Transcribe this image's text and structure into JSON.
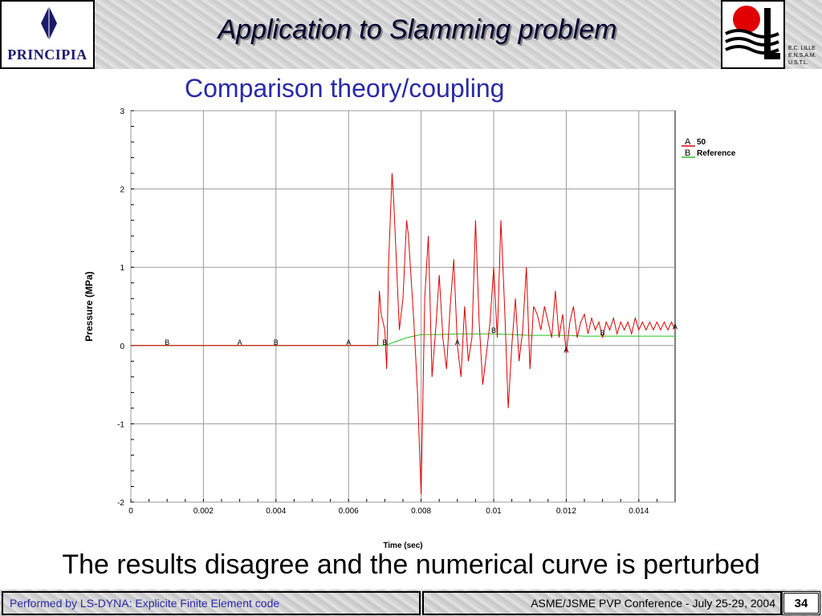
{
  "header": {
    "logo_left_text": "PRINCIPIA",
    "title": "Application to Slamming problem",
    "school_lines": [
      "E.C. LILLE",
      "E.N.S.A.M.",
      "U.S.T.L."
    ]
  },
  "subtitle": "Comparison theory/coupling",
  "caption": "The results disagree and the numerical curve is perturbed",
  "footer": {
    "left": "Performed by LS-DYNA: Explicite Finite Element code",
    "right": "ASME/JSME PVP Conference - July 25-29, 2004",
    "page": "34"
  },
  "colors": {
    "series_a": "#e00000",
    "series_b": "#22c422",
    "subtitle": "#2a2aa8"
  },
  "chart_data": {
    "type": "line",
    "xlabel": "Time (sec)",
    "ylabel": "Pressure (MPa)",
    "xlim": [
      0,
      0.015
    ],
    "ylim": [
      -2,
      3
    ],
    "x_ticks": [
      "0",
      "0.002",
      "0.004",
      "0.006",
      "0.008",
      "0.01",
      "0.012",
      "0.014"
    ],
    "y_ticks": [
      "-2",
      "-1",
      "0",
      "1",
      "2",
      "3"
    ],
    "grid": true,
    "legend_position": "top-right",
    "series": [
      {
        "name": "50",
        "marker": "A",
        "color": "#e00000",
        "markers_x": [
          0.003,
          0.006,
          0.009,
          0.012,
          0.015
        ],
        "points": [
          [
            0,
            0
          ],
          [
            0.0068,
            0
          ],
          [
            0.00685,
            0.7
          ],
          [
            0.0069,
            0.4
          ],
          [
            0.007,
            0.2
          ],
          [
            0.00705,
            -0.3
          ],
          [
            0.0071,
            1.0
          ],
          [
            0.0072,
            2.2
          ],
          [
            0.00725,
            1.8
          ],
          [
            0.0074,
            0.2
          ],
          [
            0.0075,
            0.6
          ],
          [
            0.0076,
            1.6
          ],
          [
            0.00765,
            1.4
          ],
          [
            0.0078,
            0.3
          ],
          [
            0.0079,
            -0.6
          ],
          [
            0.008,
            -1.9
          ],
          [
            0.0081,
            0.6
          ],
          [
            0.0082,
            1.4
          ],
          [
            0.0083,
            -0.4
          ],
          [
            0.0084,
            0.2
          ],
          [
            0.0085,
            0.9
          ],
          [
            0.0086,
            0.1
          ],
          [
            0.0087,
            -0.3
          ],
          [
            0.0088,
            0.5
          ],
          [
            0.0089,
            1.1
          ],
          [
            0.009,
            0.0
          ],
          [
            0.0091,
            -0.4
          ],
          [
            0.0092,
            0.5
          ],
          [
            0.0093,
            -0.2
          ],
          [
            0.0094,
            0.1
          ],
          [
            0.0095,
            1.6
          ],
          [
            0.0096,
            0.3
          ],
          [
            0.0097,
            -0.5
          ],
          [
            0.0098,
            -0.1
          ],
          [
            0.0099,
            0.3
          ],
          [
            0.01,
            1.0
          ],
          [
            0.0101,
            0.1
          ],
          [
            0.0102,
            1.6
          ],
          [
            0.0103,
            0.5
          ],
          [
            0.0104,
            -0.8
          ],
          [
            0.0105,
            0.0
          ],
          [
            0.0106,
            0.6
          ],
          [
            0.0107,
            -0.2
          ],
          [
            0.0108,
            0.2
          ],
          [
            0.0109,
            1.0
          ],
          [
            0.011,
            -0.3
          ],
          [
            0.0111,
            0.5
          ],
          [
            0.0112,
            0.4
          ],
          [
            0.0113,
            0.2
          ],
          [
            0.0114,
            0.5
          ],
          [
            0.0115,
            0.3
          ],
          [
            0.0116,
            0.1
          ],
          [
            0.0117,
            0.7
          ],
          [
            0.0118,
            0.1
          ],
          [
            0.0119,
            0.4
          ],
          [
            0.012,
            -0.1
          ],
          [
            0.0121,
            0.3
          ],
          [
            0.0122,
            0.5
          ],
          [
            0.0123,
            0.1
          ],
          [
            0.0124,
            0.3
          ],
          [
            0.0125,
            0.4
          ],
          [
            0.0126,
            0.15
          ],
          [
            0.0127,
            0.35
          ],
          [
            0.0128,
            0.2
          ],
          [
            0.0129,
            0.3
          ],
          [
            0.013,
            0.1
          ],
          [
            0.0131,
            0.3
          ],
          [
            0.0132,
            0.2
          ],
          [
            0.0133,
            0.35
          ],
          [
            0.0134,
            0.15
          ],
          [
            0.0135,
            0.3
          ],
          [
            0.0136,
            0.2
          ],
          [
            0.0137,
            0.3
          ],
          [
            0.0138,
            0.15
          ],
          [
            0.0139,
            0.35
          ],
          [
            0.014,
            0.2
          ],
          [
            0.0141,
            0.3
          ],
          [
            0.0142,
            0.2
          ],
          [
            0.0143,
            0.3
          ],
          [
            0.0144,
            0.2
          ],
          [
            0.0145,
            0.3
          ],
          [
            0.0146,
            0.2
          ],
          [
            0.0147,
            0.3
          ],
          [
            0.0148,
            0.2
          ],
          [
            0.0149,
            0.3
          ],
          [
            0.015,
            0.2
          ]
        ]
      },
      {
        "name": "Reference",
        "marker": "B",
        "color": "#22c422",
        "markers_x": [
          0.001,
          0.004,
          0.007,
          0.01,
          0.013
        ],
        "points": [
          [
            0,
            0
          ],
          [
            0.007,
            0
          ],
          [
            0.0073,
            0.05
          ],
          [
            0.0076,
            0.1
          ],
          [
            0.008,
            0.14
          ],
          [
            0.0085,
            0.14
          ],
          [
            0.009,
            0.15
          ],
          [
            0.0095,
            0.15
          ],
          [
            0.01,
            0.15
          ],
          [
            0.0105,
            0.14
          ],
          [
            0.011,
            0.13
          ],
          [
            0.0115,
            0.13
          ],
          [
            0.012,
            0.13
          ],
          [
            0.0125,
            0.12
          ],
          [
            0.013,
            0.12
          ],
          [
            0.0135,
            0.12
          ],
          [
            0.014,
            0.12
          ],
          [
            0.015,
            0.12
          ]
        ]
      }
    ]
  }
}
